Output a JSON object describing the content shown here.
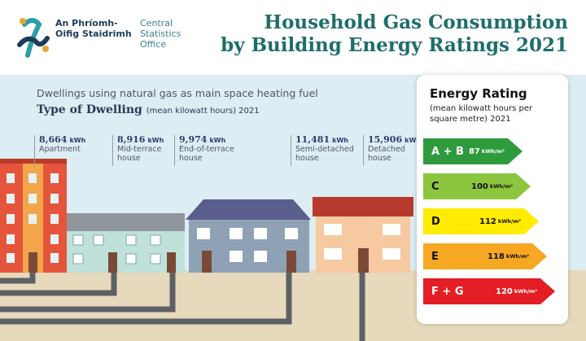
{
  "logo": {
    "irish_name": "An Phríomh-Oifig Staidrimh",
    "english_name": "Central Statistics Office"
  },
  "title": {
    "line1": "Household Gas Consumption",
    "line2": "by Building Energy Ratings 2021"
  },
  "dwellings": {
    "subtitle": "Dwellings using natural gas as main space heating fuel",
    "heading": "Type of Dwelling",
    "heading_note": "(mean kilowatt hours) 2021",
    "items": [
      {
        "value": "8,664",
        "unit": "kWh",
        "label": "Apartment"
      },
      {
        "value": "8,916",
        "unit": "kWh",
        "label": "Mid-terrace house"
      },
      {
        "value": "9,974",
        "unit": "kWh",
        "label": "End-of-terrace house"
      },
      {
        "value": "11,481",
        "unit": "kWh",
        "label": "Semi-detached house"
      },
      {
        "value": "15,906",
        "unit": "kWh",
        "label": "Detached house"
      }
    ]
  },
  "energy_rating": {
    "title": "Energy Rating",
    "note": "(mean kilowatt hours per square metre) 2021",
    "ratings": [
      {
        "grade": "A + B",
        "value": "87",
        "unit": "kWh/m²"
      },
      {
        "grade": "C",
        "value": "100",
        "unit": "kWh/m²"
      },
      {
        "grade": "D",
        "value": "112",
        "unit": "kWh/m²"
      },
      {
        "grade": "E",
        "value": "118",
        "unit": "kWh/m²"
      },
      {
        "grade": "F + G",
        "value": "120",
        "unit": "kWh/m²"
      }
    ]
  }
}
